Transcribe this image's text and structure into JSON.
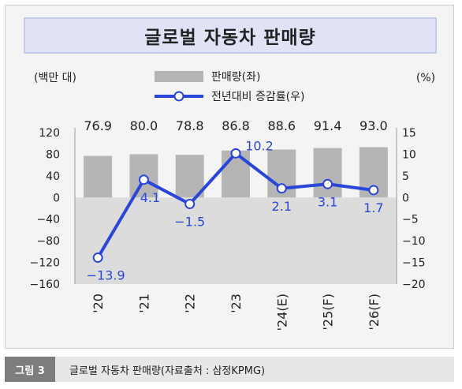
{
  "title": "글로벌 자동차 판매량",
  "left_unit": "(백만 대)",
  "right_unit": "(%)",
  "caption": {
    "tag": "그림 3",
    "text": "글로벌 자동차 판매량(자료출처 : 삼정KPMG)"
  },
  "colors": {
    "bar": "#b5b5b5",
    "line": "#2a46d9",
    "negative_band": "#dcdcdc",
    "title_bg": "#dfe3f5"
  },
  "chart_data": {
    "type": "bar+line",
    "categories": [
      "'20",
      "'21",
      "'22",
      "'23",
      "'24(E)",
      "'25(F)",
      "'26(F)"
    ],
    "series": [
      {
        "name": "판매량(좌)",
        "type": "bar",
        "axis": "left",
        "values": [
          76.9,
          80.0,
          78.8,
          86.8,
          88.6,
          91.4,
          93.0
        ]
      },
      {
        "name": "전년대비 증감률(우)",
        "type": "line",
        "axis": "right",
        "values": [
          -13.9,
          4.1,
          -1.5,
          10.2,
          2.1,
          3.1,
          1.7
        ]
      }
    ],
    "bar_labels": [
      "76.9",
      "80.0",
      "78.8",
      "86.8",
      "88.6",
      "91.4",
      "93.0"
    ],
    "line_labels": [
      "−13.9",
      "4.1",
      "−1.5",
      "10.2",
      "2.1",
      "3.1",
      "1.7"
    ],
    "left_axis": {
      "ticks": [
        120,
        80,
        40,
        0,
        -40,
        -80,
        -120,
        -160
      ],
      "tick_labels": [
        "120",
        "80",
        "40",
        "0",
        "−40",
        "−80",
        "−120",
        "−160"
      ],
      "ylim": [
        -160,
        120
      ]
    },
    "right_axis": {
      "ticks": [
        15,
        10,
        5,
        0,
        -5,
        -10,
        -15,
        -20
      ],
      "tick_labels": [
        "15",
        "10",
        "5",
        "0",
        "−5",
        "−10",
        "−15",
        "−20"
      ],
      "ylim": [
        -20,
        15
      ]
    },
    "legend_position": "top-center",
    "grid": false
  }
}
